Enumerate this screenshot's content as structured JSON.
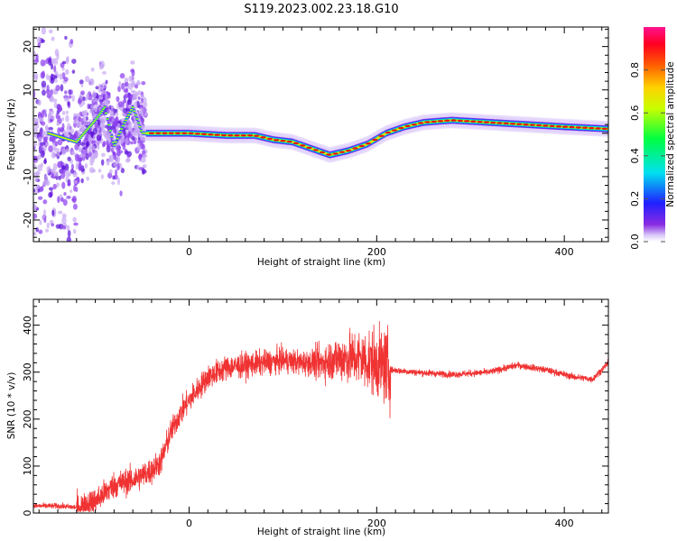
{
  "figure": {
    "title": "S119.2023.002.23.18.G10"
  },
  "colors": {
    "snr_line": "#f03232",
    "frame": "#000000",
    "background": "#ffffff"
  },
  "chart_data": [
    {
      "id": "spectrogram",
      "type": "heatmap",
      "title": "S119.2023.002.23.18.G10",
      "xlabel": "Height of straight line (km)",
      "ylabel": "Frequency (Hz)",
      "xlim": [
        -166,
        447
      ],
      "ylim": [
        -25,
        24.5
      ],
      "xticks": [
        0,
        200,
        400
      ],
      "yticks": [
        -20,
        -10,
        0,
        10,
        20
      ],
      "colorbar": {
        "label": "Normalized spectral amplitude",
        "range": [
          0,
          1
        ],
        "ticks": [
          0.0,
          0.2,
          0.4,
          0.6,
          0.8
        ],
        "colormap": "rainbow (purple-blue-cyan-green-yellow-orange-red-magenta)"
      },
      "ridge": {
        "x": [
          -150,
          -120,
          -100,
          -90,
          -80,
          -70,
          -60,
          -50,
          -40,
          -20,
          0,
          40,
          70,
          90,
          110,
          130,
          150,
          170,
          190,
          210,
          230,
          250,
          280,
          320,
          360,
          400,
          447
        ],
        "y": [
          0,
          -2,
          3,
          6,
          -3,
          2,
          6,
          0,
          0,
          0,
          0,
          -0.5,
          -0.5,
          -1.5,
          -2,
          -3.5,
          -5,
          -4,
          -2.5,
          0,
          1.5,
          2.5,
          3,
          2.5,
          2,
          1.5,
          1
        ]
      }
    },
    {
      "id": "snr",
      "type": "line",
      "xlabel": "Height of straight line (km)",
      "ylabel": "SNR (10 * v/v)",
      "xlim": [
        -166,
        447
      ],
      "ylim": [
        0,
        455
      ],
      "xticks": [
        0,
        200,
        400
      ],
      "yticks": [
        0,
        100,
        200,
        300,
        400
      ],
      "series": [
        {
          "color": "#f03232",
          "x": [
            -166,
            -140,
            -120,
            -100,
            -80,
            -60,
            -40,
            -30,
            -20,
            -10,
            0,
            20,
            40,
            60,
            80,
            100,
            120,
            140,
            160,
            180,
            200,
            210,
            215,
            240,
            280,
            320,
            350,
            380,
            410,
            430,
            447
          ],
          "y": [
            15,
            15,
            12,
            25,
            60,
            70,
            90,
            110,
            170,
            210,
            240,
            290,
            310,
            315,
            320,
            325,
            320,
            320,
            330,
            330,
            320,
            310,
            305,
            300,
            295,
            300,
            315,
            305,
            290,
            285,
            320
          ]
        }
      ]
    }
  ]
}
